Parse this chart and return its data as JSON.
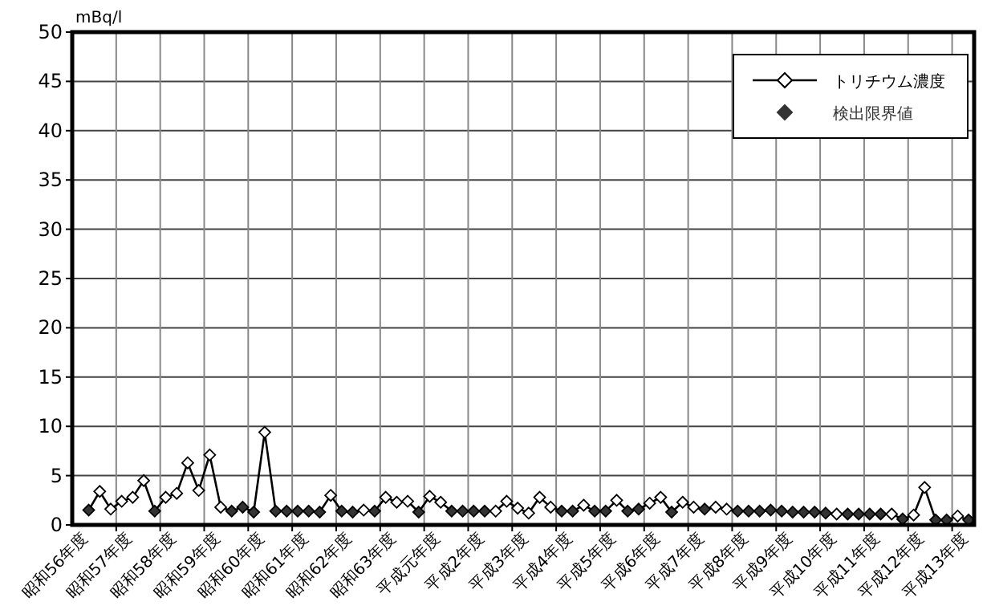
{
  "chart_data": {
    "type": "line",
    "ylabel": "mBq/l",
    "categories": [
      null,
      "昭和56年度",
      null,
      null,
      null,
      "昭和57年度",
      null,
      null,
      null,
      "昭和58年度",
      null,
      null,
      null,
      "昭和59年度",
      null,
      null,
      null,
      "昭和60年度",
      null,
      null,
      null,
      "昭和61年度",
      null,
      null,
      null,
      "昭和62年度",
      null,
      null,
      null,
      "昭和63年度",
      null,
      null,
      null,
      "平成元年度",
      null,
      null,
      null,
      "平成2年度",
      null,
      null,
      null,
      "平成3年度",
      null,
      null,
      null,
      "平成4年度",
      null,
      null,
      null,
      "平成5年度",
      null,
      null,
      null,
      "平成6年度",
      null,
      null,
      null,
      "平成7年度",
      null,
      null,
      null,
      "平成8年度",
      null,
      null,
      null,
      "平成9年度",
      null,
      null,
      null,
      "平成10年度",
      null,
      null,
      null,
      "平成11年度",
      null,
      null,
      null,
      "平成12年度",
      null,
      null,
      null,
      "平成13年度"
    ],
    "series": [
      {
        "name": "トリチウム濃度",
        "color": "#000000",
        "values": [
          null,
          1.5,
          3.4,
          1.6,
          2.4,
          2.8,
          4.5,
          1.4,
          2.8,
          3.2,
          6.3,
          3.5,
          7.1,
          1.8,
          1.4,
          1.8,
          1.3,
          9.4,
          1.4,
          1.4,
          1.4,
          1.4,
          1.3,
          3.0,
          1.4,
          1.3,
          1.5,
          1.4,
          2.8,
          2.3,
          2.4,
          1.3,
          2.9,
          2.3,
          1.4,
          1.4,
          1.4,
          1.4,
          1.4,
          2.4,
          1.7,
          1.2,
          2.8,
          1.8,
          1.4,
          1.4,
          2.0,
          1.4,
          1.4,
          2.5,
          1.4,
          1.6,
          2.2,
          2.8,
          1.3,
          2.3,
          1.8,
          1.6,
          1.8,
          1.6,
          1.4,
          1.4,
          1.4,
          1.5,
          1.4,
          1.3,
          1.3,
          1.3,
          1.2,
          1.1,
          1.1,
          1.1,
          1.1,
          1.1,
          1.1,
          0.6,
          1.0,
          3.8,
          0.5,
          0.5,
          0.9,
          0.5
        ]
      },
      {
        "type": "scatter",
        "color": "#ffffff",
        "marker": "diamond",
        "values": [
          null,
          null,
          3.4,
          1.6,
          2.4,
          2.8,
          4.5,
          null,
          2.8,
          3.2,
          6.3,
          3.5,
          7.1,
          1.8,
          null,
          null,
          null,
          9.4,
          null,
          null,
          null,
          null,
          null,
          3.0,
          null,
          null,
          1.5,
          null,
          2.8,
          2.3,
          2.4,
          null,
          2.9,
          2.3,
          null,
          null,
          null,
          null,
          1.4,
          2.4,
          1.7,
          1.2,
          2.8,
          1.8,
          null,
          null,
          2.0,
          null,
          null,
          2.5,
          null,
          null,
          2.2,
          2.8,
          null,
          2.3,
          1.8,
          null,
          1.8,
          1.6,
          null,
          null,
          null,
          null,
          null,
          null,
          null,
          null,
          null,
          1.1,
          null,
          null,
          null,
          null,
          1.1,
          null,
          1.0,
          3.8,
          null,
          null,
          0.9,
          null
        ]
      },
      {
        "name": "検出限界値",
        "type": "scatter",
        "color": "#333333",
        "marker": "diamond",
        "values": [
          null,
          1.5,
          null,
          null,
          null,
          null,
          null,
          1.4,
          null,
          null,
          null,
          null,
          null,
          null,
          1.4,
          1.8,
          1.3,
          null,
          1.4,
          1.4,
          1.4,
          1.4,
          1.3,
          null,
          1.4,
          1.3,
          null,
          1.4,
          null,
          null,
          null,
          1.3,
          null,
          null,
          1.4,
          1.4,
          1.4,
          1.4,
          null,
          null,
          null,
          null,
          null,
          null,
          1.4,
          1.4,
          null,
          1.4,
          1.4,
          null,
          1.4,
          1.6,
          null,
          null,
          1.3,
          null,
          null,
          1.6,
          null,
          null,
          1.4,
          1.4,
          1.4,
          1.5,
          1.4,
          1.3,
          1.3,
          1.3,
          1.2,
          null,
          1.1,
          1.1,
          1.1,
          1.1,
          null,
          0.6,
          null,
          null,
          0.5,
          0.5,
          null,
          0.5
        ]
      }
    ],
    "ylim": [
      0,
      50
    ],
    "yticks": [
      0,
      5,
      10,
      15,
      20,
      25,
      30,
      35,
      40,
      45,
      50
    ],
    "grid": true,
    "legend": "top right"
  }
}
